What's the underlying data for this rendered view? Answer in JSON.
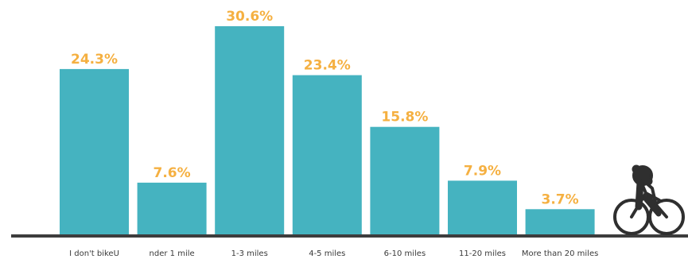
{
  "chart_data": {
    "type": "bar",
    "categories": [
      "I don't bikeU",
      "nder 1 mile",
      "1-3 miles",
      "4-5 miles",
      "6-10 miles",
      "11-20 miles",
      "More than 20 miles"
    ],
    "values": [
      24.3,
      7.6,
      30.6,
      23.4,
      15.8,
      7.9,
      3.7
    ],
    "value_labels": [
      "24.3%",
      "7.6%",
      "30.6%",
      "23.4%",
      "15.8%",
      "7.9%",
      "3.7%"
    ],
    "ylim": [
      0,
      30.6
    ],
    "grid": false,
    "legend": "none",
    "colors": {
      "bar": "#45b3c0",
      "value_label": "#f5b041",
      "baseline": "#3d3d3d",
      "tick_label": "#3a3a3a"
    },
    "decoration": "cyclist-icon"
  }
}
